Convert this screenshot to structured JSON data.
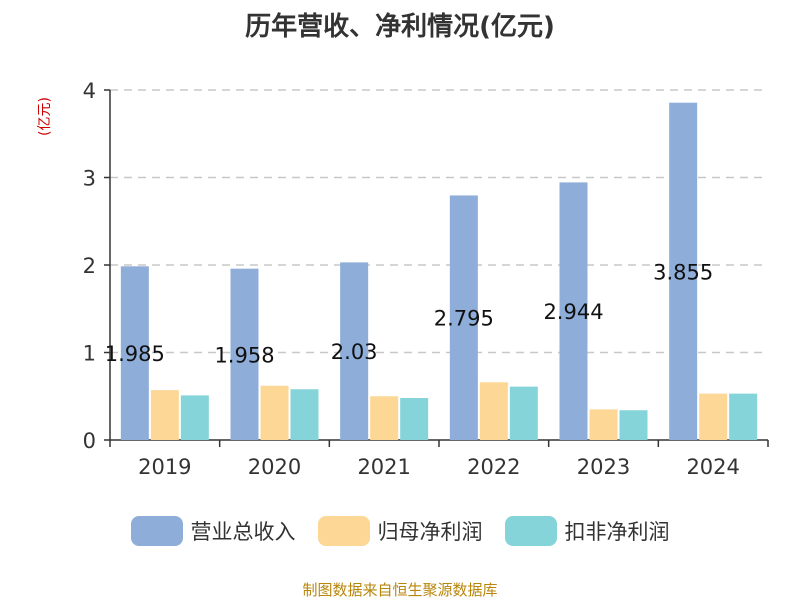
{
  "title": "历年营收、净利情况(亿元)",
  "unit_label": "(亿元)",
  "source": "制图数据来自恒生聚源数据库",
  "colors": {
    "revenue": "#8eadd9",
    "net_profit": "#fdd796",
    "deducted_profit": "#85d4d9",
    "grid": "#c8c8c8",
    "axis": "#333333",
    "unit": "#cc0000",
    "source": "#b8860b"
  },
  "chart_data": {
    "type": "bar",
    "categories": [
      "2019",
      "2020",
      "2021",
      "2022",
      "2023",
      "2024"
    ],
    "series": [
      {
        "name": "营业总收入",
        "values": [
          1.985,
          1.958,
          2.03,
          2.795,
          2.944,
          3.855
        ],
        "labels": [
          "1.985",
          "1.958",
          "2.03",
          "2.795",
          "2.944",
          "3.855"
        ]
      },
      {
        "name": "归母净利润",
        "values": [
          0.57,
          0.62,
          0.5,
          0.66,
          0.35,
          0.53
        ]
      },
      {
        "name": "扣非净利润",
        "values": [
          0.51,
          0.58,
          0.48,
          0.61,
          0.34,
          0.53
        ]
      }
    ],
    "ylim": [
      0,
      4
    ],
    "yticks": [
      "0",
      "1",
      "2",
      "3",
      "4"
    ],
    "grid": true,
    "legend": "bottom"
  }
}
